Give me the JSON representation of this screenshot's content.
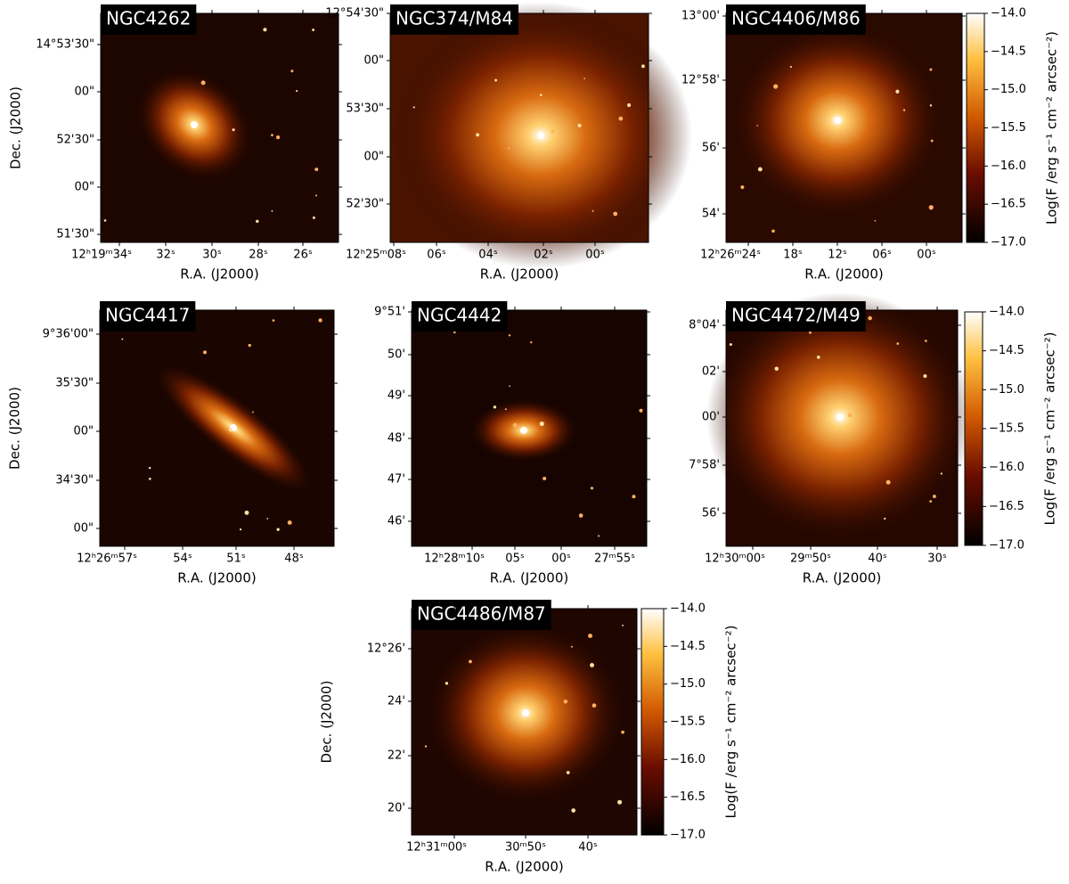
{
  "colorbar": {
    "label": "Log(F /erg s⁻¹ cm⁻² arcsec⁻²)",
    "lim": [
      -17,
      -14
    ],
    "ticks": [
      {
        "value": -14,
        "label": "−14.0"
      },
      {
        "value": -14.5,
        "label": "−14.5"
      },
      {
        "value": -15,
        "label": "−15.0"
      },
      {
        "value": -15.5,
        "label": "−15.5"
      },
      {
        "value": -16,
        "label": "−16.0"
      },
      {
        "value": -16.5,
        "label": "−16.5"
      },
      {
        "value": -17,
        "label": "−17.0"
      }
    ]
  },
  "panels": [
    {
      "title": "NGC4262",
      "xlabel": "R.A. (J2000)",
      "ylabel": "Dec. (J2000)",
      "xticks": [
        "12ʰ19ᵐ34ˢ",
        "32ˢ",
        "30ˢ",
        "28ˢ",
        "26ˢ"
      ],
      "yticks": [
        "14°53'30\"",
        "00\"",
        "52'30\"",
        "00\"",
        "51'30\""
      ]
    },
    {
      "title": "NGC374/M84",
      "xlabel": "R.A. (J2000)",
      "xticks": [
        "12ʰ25ᵐ08ˢ",
        "06ˢ",
        "04ˢ",
        "02ˢ",
        "00ˢ"
      ],
      "yticks": [
        "12°54'30\"",
        "00\"",
        "53'30\"",
        "00\"",
        "52'30\""
      ]
    },
    {
      "title": "NGC4406/M86",
      "xlabel": "R.A. (J2000)",
      "xticks": [
        "12ʰ26ᵐ24ˢ",
        "18ˢ",
        "12ˢ",
        "06ˢ",
        "00ˢ"
      ],
      "yticks": [
        "13°00'",
        "12°58'",
        "56'",
        "54'"
      ]
    },
    {
      "title": "NGC4417",
      "xlabel": "R.A. (J2000)",
      "ylabel": "Dec. (J2000)",
      "xticks": [
        "12ʰ26ᵐ57ˢ",
        "54ˢ",
        "51ˢ",
        "48ˢ"
      ],
      "yticks": [
        "9°36'00\"",
        "35'30\"",
        "00\"",
        "34'30\"",
        "00\""
      ]
    },
    {
      "title": "NGC4442",
      "xlabel": "R.A. (J2000)",
      "xticks": [
        "12ʰ28ᵐ10ˢ",
        "05ˢ",
        "00ˢ",
        "27ᵐ55ˢ"
      ],
      "yticks": [
        "9°51'",
        "50'",
        "49'",
        "48'",
        "47'",
        "46'"
      ]
    },
    {
      "title": "NGC4472/M49",
      "xlabel": "R.A. (J2000)",
      "xticks": [
        "12ʰ30ᵐ00ˢ",
        "29ᵐ50ˢ",
        "40ˢ",
        "30ˢ"
      ],
      "yticks": [
        "8°04'",
        "02'",
        "00'",
        "7°58'",
        "56'"
      ]
    },
    {
      "title": "NGC4486/M87",
      "xlabel": "R.A. (J2000)",
      "ylabel": "Dec. (J2000)",
      "xticks": [
        "12ʰ31ᵐ00ˢ",
        "30ᵐ50ˢ",
        "40ˢ"
      ],
      "yticks": [
        "12°26'",
        "24'",
        "22'",
        "20'"
      ]
    }
  ]
}
